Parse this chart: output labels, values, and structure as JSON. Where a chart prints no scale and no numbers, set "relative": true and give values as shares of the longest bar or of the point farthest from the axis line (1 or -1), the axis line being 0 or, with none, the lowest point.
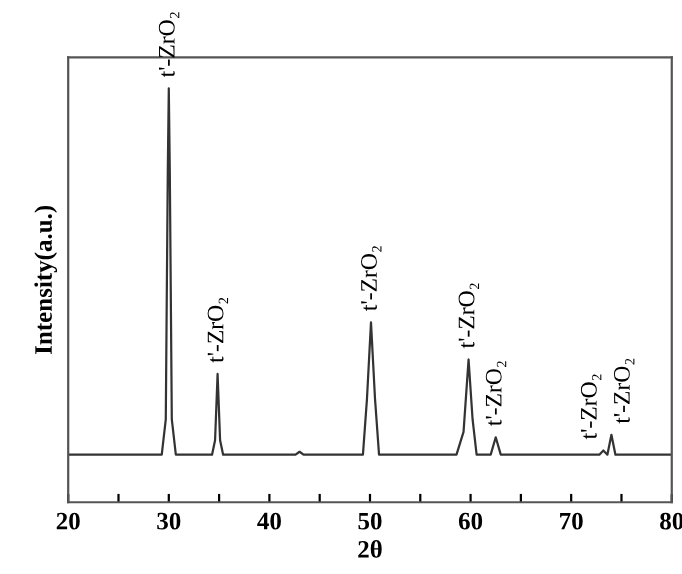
{
  "chart_data": {
    "type": "line",
    "relative": true,
    "xlabel": "2θ",
    "ylabel": "Intensity(a.u.)",
    "x": [
      20,
      29.3,
      29.7,
      29.9,
      30.0,
      30.1,
      30.3,
      30.7,
      34.3,
      34.6,
      34.85,
      35.1,
      35.4,
      42.6,
      43.0,
      43.4,
      49.3,
      49.7,
      50.1,
      50.5,
      50.9,
      58.6,
      59.3,
      59.8,
      60.2,
      60.6,
      62.0,
      62.5,
      63.0,
      72.8,
      73.2,
      73.6,
      74.0,
      74.4,
      80
    ],
    "series": [
      {
        "color": "#333333",
        "values": [
          0.115,
          0.115,
          0.2,
          0.8,
          1.0,
          0.8,
          0.2,
          0.115,
          0.115,
          0.15,
          0.31,
          0.15,
          0.115,
          0.115,
          0.122,
          0.115,
          0.115,
          0.25,
          0.435,
          0.25,
          0.115,
          0.115,
          0.17,
          0.345,
          0.2,
          0.115,
          0.115,
          0.157,
          0.115,
          0.115,
          0.125,
          0.115,
          0.163,
          0.115,
          0.115
        ]
      }
    ],
    "xlim": [
      20,
      80
    ],
    "xticks": [
      20,
      {
        "value": 25,
        "label": null
      },
      30,
      {
        "value": 35,
        "label": null
      },
      40,
      {
        "value": 45,
        "label": null
      },
      50,
      {
        "value": 55,
        "label": null
      },
      60,
      {
        "value": 65,
        "label": null
      },
      70,
      {
        "value": 75,
        "label": null
      },
      80
    ],
    "tick_labels": "x",
    "grid": false,
    "legend": false,
    "marker": "none",
    "line_style": "solid",
    "annotations": [
      {
        "text": "t'-ZrO₂",
        "x": 30.0,
        "y": 1.0
      },
      {
        "text": "t'-ZrO₂",
        "x": 34.85,
        "y": 0.31
      },
      {
        "text": "t'-ZrO₂",
        "x": 50.1,
        "y": 0.435
      },
      {
        "text": "t'-ZrO₂",
        "x": 59.8,
        "y": 0.345
      },
      {
        "text": "t'-ZrO₂",
        "x": 62.5,
        "y": 0.157
      },
      {
        "text": "t'-ZrO₂",
        "x": 73.2,
        "y": 0.125
      },
      {
        "text": "t'-ZrO₂",
        "x": 74.0,
        "y": 0.163
      }
    ]
  }
}
